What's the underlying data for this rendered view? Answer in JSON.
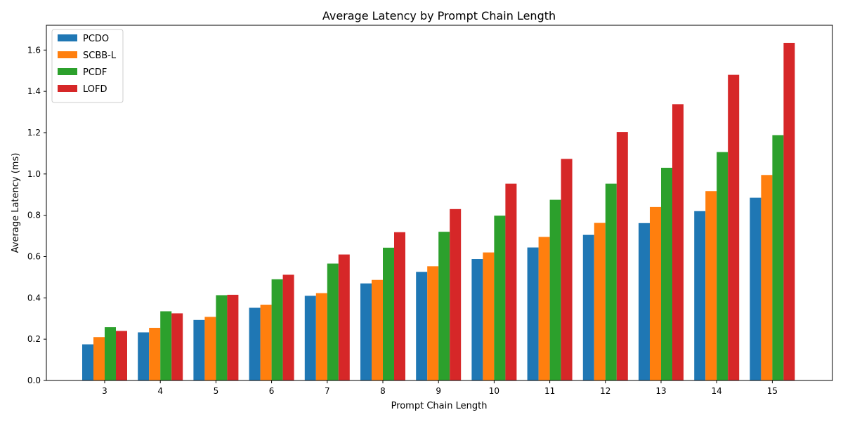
{
  "chart_data": {
    "type": "bar",
    "title": "Average Latency by Prompt Chain Length",
    "xlabel": "Prompt Chain Length",
    "ylabel": "Average Latency (ms)",
    "categories": [
      "3",
      "4",
      "5",
      "6",
      "7",
      "8",
      "9",
      "10",
      "11",
      "12",
      "13",
      "14",
      "15"
    ],
    "ylim": [
      0,
      1.72
    ],
    "yticks": [
      "0.0",
      "0.2",
      "0.4",
      "0.6",
      "0.8",
      "1.0",
      "1.2",
      "1.4",
      "1.6"
    ],
    "grid": false,
    "legend_position": "top-left",
    "series": [
      {
        "name": "PCDO",
        "color": "#1f77b4",
        "values": [
          0.175,
          0.233,
          0.293,
          0.352,
          0.41,
          0.47,
          0.526,
          0.588,
          0.644,
          0.705,
          0.762,
          0.82,
          0.885
        ]
      },
      {
        "name": "SCBB-L",
        "color": "#ff7f0e",
        "values": [
          0.21,
          0.255,
          0.308,
          0.367,
          0.423,
          0.487,
          0.553,
          0.62,
          0.695,
          0.763,
          0.84,
          0.917,
          0.995
        ]
      },
      {
        "name": "PCDF",
        "color": "#2ca02c",
        "values": [
          0.258,
          0.335,
          0.413,
          0.49,
          0.566,
          0.643,
          0.72,
          0.798,
          0.875,
          0.953,
          1.03,
          1.106,
          1.188
        ]
      },
      {
        "name": "LOFD",
        "color": "#d62728",
        "values": [
          0.24,
          0.325,
          0.415,
          0.512,
          0.61,
          0.718,
          0.83,
          0.953,
          1.073,
          1.203,
          1.338,
          1.48,
          1.635
        ]
      }
    ]
  }
}
